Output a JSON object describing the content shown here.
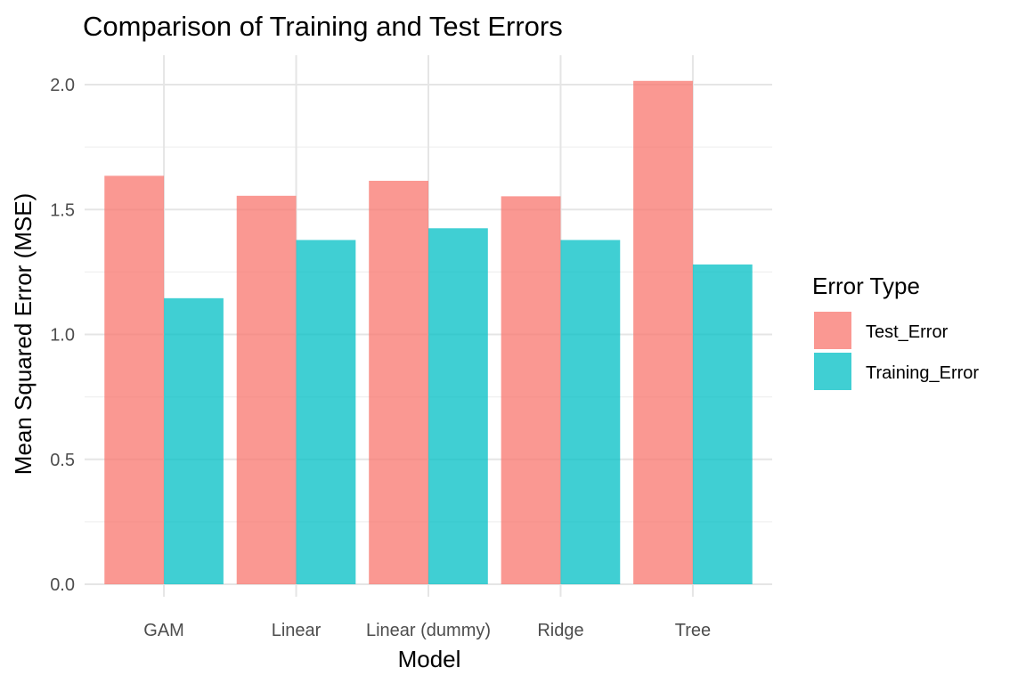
{
  "chart_data": {
    "type": "bar",
    "title": "Comparison of Training and Test Errors",
    "xlabel": "Model",
    "ylabel": "Mean Squared Error (MSE)",
    "categories": [
      "GAM",
      "Linear",
      "Linear (dummy)",
      "Ridge",
      "Tree"
    ],
    "series": [
      {
        "name": "Test_Error",
        "color": "#F8766D",
        "values": [
          1.635,
          1.555,
          1.615,
          1.553,
          2.015
        ]
      },
      {
        "name": "Training_Error",
        "color": "#00BFC4",
        "values": [
          1.145,
          1.378,
          1.425,
          1.378,
          1.28
        ]
      }
    ],
    "ylim": [
      0,
      2.1
    ],
    "yticks": [
      "0.0",
      "0.5",
      "1.0",
      "1.5",
      "2.0"
    ],
    "legend": {
      "title": "Error Type",
      "position": "right"
    },
    "grid": true
  }
}
